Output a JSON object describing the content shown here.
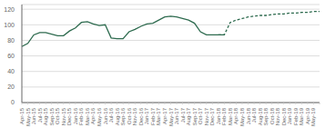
{
  "chart_data": {
    "type": "line",
    "categories": [
      "Apr-15",
      "May-15",
      "Jun-15",
      "Jul-15",
      "Aug-15",
      "Sep-15",
      "Oct-15",
      "Nov-15",
      "Dec-15",
      "Jan-16",
      "Feb-16",
      "Mar-16",
      "Apr-16",
      "May-16",
      "Jun-16",
      "Jul-16",
      "Aug-16",
      "Sep-16",
      "Oct-16",
      "Nov-16",
      "Dec-16",
      "Jan-17",
      "Feb-17",
      "Mar-17",
      "Apr-17",
      "May-17",
      "Jun-17",
      "Jul-17",
      "Aug-17",
      "Sep-17",
      "Oct-17",
      "Nov-17",
      "Dec-17",
      "Jan-18",
      "Feb-18",
      "Mar-18",
      "Apr-18",
      "May-18",
      "Jun-18",
      "Jul-18",
      "Aug-18",
      "Sep-18",
      "Oct-18",
      "Nov-18",
      "Dec-18",
      "Jan-19",
      "Feb-19",
      "Mar-19",
      "Apr-19",
      "May-19",
      null
    ],
    "series": [
      {
        "color": "#2E6B4F",
        "line_style": "solid",
        "values": [
          72,
          76,
          87,
          90,
          90,
          88,
          86,
          86,
          92,
          96,
          103,
          104,
          101,
          99,
          100,
          83,
          82,
          82,
          91,
          94,
          98,
          101,
          102,
          106,
          110,
          111,
          110,
          108,
          106,
          102,
          91,
          87,
          87,
          87,
          87,
          null,
          null,
          null,
          null,
          null,
          null,
          null,
          null,
          null,
          null,
          null,
          null,
          null,
          null,
          null,
          null
        ]
      },
      {
        "color": "#2E6B4F",
        "line_style": "dashed",
        "values": [
          null,
          null,
          null,
          null,
          null,
          null,
          null,
          null,
          null,
          null,
          null,
          null,
          null,
          null,
          null,
          null,
          null,
          null,
          null,
          null,
          null,
          null,
          null,
          null,
          null,
          null,
          null,
          null,
          null,
          null,
          null,
          null,
          null,
          87,
          87,
          103,
          106,
          108,
          110,
          111,
          112,
          112,
          113,
          114,
          114,
          115,
          115,
          116,
          116,
          117,
          117
        ]
      }
    ],
    "ylim": [
      0,
      126
    ],
    "yticks": [
      0,
      20,
      40,
      60,
      80,
      100,
      120
    ],
    "grid": true
  }
}
